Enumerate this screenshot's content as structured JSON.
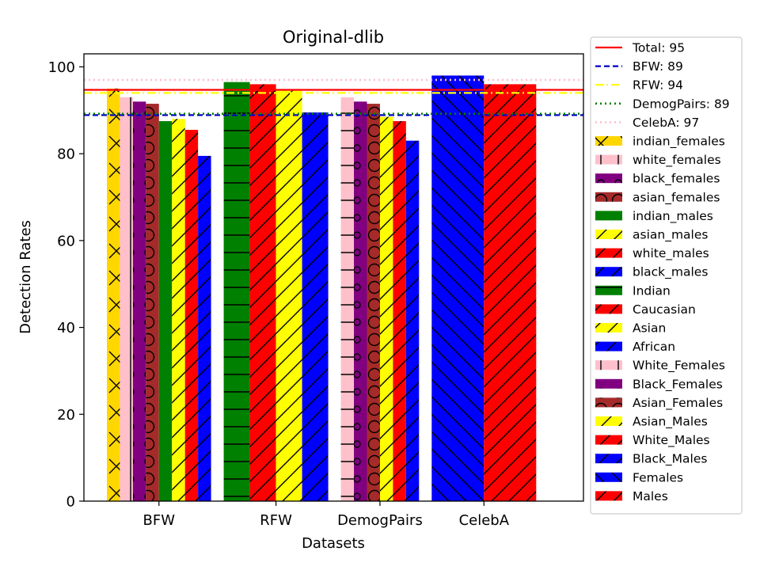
{
  "chart_data": {
    "type": "bar",
    "title": "Original-dlib",
    "xlabel": "Datasets",
    "ylabel": "Detection Rates",
    "ylim": [
      0,
      103
    ],
    "yticks": [
      0,
      20,
      40,
      60,
      80,
      100
    ],
    "tick_labels": [
      "0",
      "20",
      "40",
      "60",
      "80",
      "100"
    ],
    "grid": false,
    "legend_position": "outside-right",
    "groups": [
      {
        "name": "BFW",
        "bars": [
          {
            "series": "indian_females",
            "value": 95,
            "color": "#FFD700",
            "hatch": "x"
          },
          {
            "series": "white_females",
            "value": 93,
            "color": "#FFC0CB",
            "hatch": "|"
          },
          {
            "series": "black_females",
            "value": 92,
            "color": "#800080",
            "hatch": "o"
          },
          {
            "series": "asian_females",
            "value": 91.5,
            "color": "#A52A2A",
            "hatch": "O"
          },
          {
            "series": "indian_males",
            "value": 87.5,
            "color": "#008000",
            "hatch": ""
          },
          {
            "series": "asian_males",
            "value": 88,
            "color": "#FFFF00",
            "hatch": "/"
          },
          {
            "series": "white_males",
            "value": 85.5,
            "color": "#FF0000",
            "hatch": "/"
          },
          {
            "series": "black_males",
            "value": 79.5,
            "color": "#0000FF",
            "hatch": "/"
          }
        ]
      },
      {
        "name": "RFW",
        "bars": [
          {
            "series": "Indian",
            "value": 96.5,
            "color": "#008000",
            "hatch": "-"
          },
          {
            "series": "Caucasian",
            "value": 96,
            "color": "#FF0000",
            "hatch": "/"
          },
          {
            "series": "Asian",
            "value": 94.5,
            "color": "#FFFF00",
            "hatch": "/"
          },
          {
            "series": "African",
            "value": 89.5,
            "color": "#0000FF",
            "hatch": "/"
          }
        ]
      },
      {
        "name": "DemogPairs",
        "bars": [
          {
            "series": "White_Females",
            "value": 93,
            "color": "#FFC0CB",
            "hatch": "+"
          },
          {
            "series": "Black_Females",
            "value": 92,
            "color": "#800080",
            "hatch": "o"
          },
          {
            "series": "Asian_Females",
            "value": 91.5,
            "color": "#A52A2A",
            "hatch": "O"
          },
          {
            "series": "Asian_Males",
            "value": 88.5,
            "color": "#FFFF00",
            "hatch": "/"
          },
          {
            "series": "White_Males",
            "value": 87.5,
            "color": "#FF0000",
            "hatch": "/"
          },
          {
            "series": "Black_Males",
            "value": 83,
            "color": "#0000FF",
            "hatch": "/"
          }
        ]
      },
      {
        "name": "CelebA",
        "bars": [
          {
            "series": "Females",
            "value": 98,
            "color": "#0000FF",
            "hatch": "\\"
          },
          {
            "series": "Males",
            "value": 96,
            "color": "#FF0000",
            "hatch": "/"
          }
        ]
      }
    ],
    "reference_lines": [
      {
        "label": "Total: 95",
        "value": 94.7,
        "color": "#FF0000",
        "style": "solid"
      },
      {
        "label": "BFW: 89",
        "value": 88.9,
        "color": "#0000CC",
        "style": "dashed"
      },
      {
        "label": "RFW: 94",
        "value": 94.0,
        "color": "#FFFF00",
        "style": "dashdot"
      },
      {
        "label": "DemogPairs: 89",
        "value": 89.2,
        "color": "#008000",
        "style": "dotted"
      },
      {
        "label": "CelebA: 97",
        "value": 97.0,
        "color": "#FFC0CB",
        "style": "dotted"
      }
    ],
    "legend": [
      {
        "label": "Total: 95",
        "kind": "line",
        "color": "#FF0000",
        "style": "solid"
      },
      {
        "label": "BFW: 89",
        "kind": "line",
        "color": "#0000CC",
        "style": "dashed"
      },
      {
        "label": "RFW: 94",
        "kind": "line",
        "color": "#FFFF00",
        "style": "dashdot"
      },
      {
        "label": "DemogPairs: 89",
        "kind": "line",
        "color": "#008000",
        "style": "dotted"
      },
      {
        "label": "CelebA: 97",
        "kind": "line",
        "color": "#FFC0CB",
        "style": "dotted"
      },
      {
        "label": "indian_females",
        "kind": "patch",
        "color": "#FFD700",
        "hatch": "x"
      },
      {
        "label": "white_females",
        "kind": "patch",
        "color": "#FFC0CB",
        "hatch": "|"
      },
      {
        "label": "black_females",
        "kind": "patch",
        "color": "#800080",
        "hatch": "o"
      },
      {
        "label": "asian_females",
        "kind": "patch",
        "color": "#A52A2A",
        "hatch": "O"
      },
      {
        "label": "indian_males",
        "kind": "patch",
        "color": "#008000",
        "hatch": ""
      },
      {
        "label": "asian_males",
        "kind": "patch",
        "color": "#FFFF00",
        "hatch": "/"
      },
      {
        "label": "white_males",
        "kind": "patch",
        "color": "#FF0000",
        "hatch": "/"
      },
      {
        "label": "black_males",
        "kind": "patch",
        "color": "#0000FF",
        "hatch": "/"
      },
      {
        "label": "Indian",
        "kind": "patch",
        "color": "#008000",
        "hatch": "-"
      },
      {
        "label": "Caucasian",
        "kind": "patch",
        "color": "#FF0000",
        "hatch": "/"
      },
      {
        "label": "Asian",
        "kind": "patch",
        "color": "#FFFF00",
        "hatch": "/"
      },
      {
        "label": "African",
        "kind": "patch",
        "color": "#0000FF",
        "hatch": "/"
      },
      {
        "label": "White_Females",
        "kind": "patch",
        "color": "#FFC0CB",
        "hatch": "+"
      },
      {
        "label": "Black_Females",
        "kind": "patch",
        "color": "#800080",
        "hatch": "o"
      },
      {
        "label": "Asian_Females",
        "kind": "patch",
        "color": "#A52A2A",
        "hatch": "O"
      },
      {
        "label": "Asian_Males",
        "kind": "patch",
        "color": "#FFFF00",
        "hatch": "/"
      },
      {
        "label": "White_Males",
        "kind": "patch",
        "color": "#FF0000",
        "hatch": "/"
      },
      {
        "label": "Black_Males",
        "kind": "patch",
        "color": "#0000FF",
        "hatch": "/"
      },
      {
        "label": "Females",
        "kind": "patch",
        "color": "#0000FF",
        "hatch": "\\"
      },
      {
        "label": "Males",
        "kind": "patch",
        "color": "#FF0000",
        "hatch": "/"
      }
    ]
  }
}
